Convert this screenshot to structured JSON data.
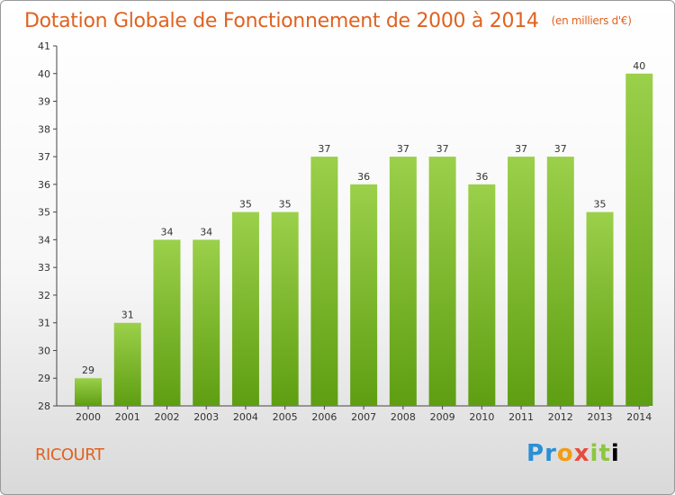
{
  "title": "Dotation Globale de Fonctionnement de 2000 à 2014",
  "subtitle": "(en milliers d'€)",
  "commune": "RICOURT",
  "logo": "Proxiti",
  "colors": {
    "bar_top": "#9bd04a",
    "bar_bottom": "#5e9e12",
    "title": "#e0621f"
  },
  "chart_data": {
    "type": "bar",
    "title": "Dotation Globale de Fonctionnement de 2000 à 2014",
    "subtitle": "(en milliers d'€)",
    "categories": [
      "2000",
      "2001",
      "2002",
      "2003",
      "2004",
      "2005",
      "2006",
      "2007",
      "2008",
      "2009",
      "2010",
      "2011",
      "2012",
      "2013",
      "2014"
    ],
    "values": [
      29,
      31,
      34,
      34,
      35,
      35,
      37,
      36,
      37,
      37,
      36,
      37,
      37,
      35,
      40
    ],
    "yticks": [
      28,
      29,
      30,
      31,
      32,
      33,
      34,
      35,
      36,
      37,
      38,
      39,
      40,
      41
    ],
    "ylim": [
      28,
      41
    ],
    "grid": false,
    "legend": "none"
  }
}
